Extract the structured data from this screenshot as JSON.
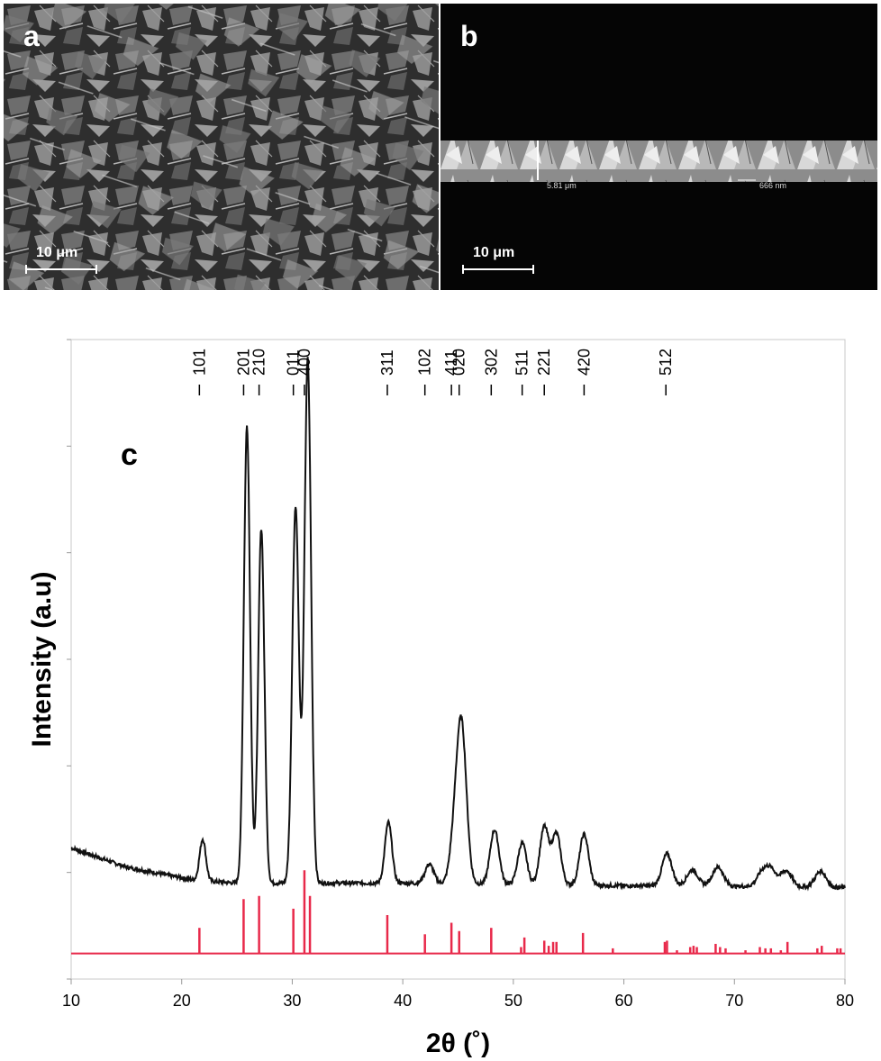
{
  "panels": {
    "a": {
      "letter": "a",
      "scale": "10 μm"
    },
    "b": {
      "letter": "b",
      "scale": "10 μm",
      "measure_1": "5.81 μm",
      "measure_2": "666 nm"
    }
  },
  "chart_data": {
    "type": "line",
    "panel_letter": "c",
    "xlabel": "2θ (˚)",
    "ylabel": "Intensity (a.u)",
    "xlim": [
      10,
      80
    ],
    "x_ticks": [
      10,
      20,
      30,
      40,
      50,
      60,
      70,
      80
    ],
    "grid": false,
    "series": [
      {
        "color": "#111111",
        "background": [
          [
            10,
            0.205
          ],
          [
            15,
            0.175
          ],
          [
            18,
            0.165
          ],
          [
            21,
            0.155
          ],
          [
            25,
            0.15
          ],
          [
            30,
            0.15
          ],
          [
            40,
            0.15
          ],
          [
            50,
            0.148
          ],
          [
            60,
            0.146
          ],
          [
            70,
            0.145
          ],
          [
            80,
            0.143
          ]
        ],
        "peaks": [
          {
            "x": 21.9,
            "h": 0.065,
            "w": 0.28
          },
          {
            "x": 25.9,
            "h": 0.715,
            "w": 0.28
          },
          {
            "x": 27.2,
            "h": 0.555,
            "w": 0.28
          },
          {
            "x": 30.3,
            "h": 0.59,
            "w": 0.3
          },
          {
            "x": 31.4,
            "h": 0.82,
            "w": 0.3
          },
          {
            "x": 38.7,
            "h": 0.095,
            "w": 0.32
          },
          {
            "x": 42.4,
            "h": 0.03,
            "w": 0.4
          },
          {
            "x": 44.6,
            "h": 0.05,
            "w": 0.4
          },
          {
            "x": 45.3,
            "h": 0.25,
            "w": 0.45
          },
          {
            "x": 48.3,
            "h": 0.085,
            "w": 0.4
          },
          {
            "x": 50.8,
            "h": 0.065,
            "w": 0.4
          },
          {
            "x": 52.8,
            "h": 0.09,
            "w": 0.4
          },
          {
            "x": 53.9,
            "h": 0.08,
            "w": 0.4
          },
          {
            "x": 56.4,
            "h": 0.08,
            "w": 0.4
          },
          {
            "x": 63.9,
            "h": 0.05,
            "w": 0.45
          },
          {
            "x": 66.2,
            "h": 0.025,
            "w": 0.5
          },
          {
            "x": 68.5,
            "h": 0.03,
            "w": 0.5
          },
          {
            "x": 72.5,
            "h": 0.02,
            "w": 0.5
          },
          {
            "x": 73.3,
            "h": 0.025,
            "w": 0.5
          },
          {
            "x": 74.7,
            "h": 0.025,
            "w": 0.5
          },
          {
            "x": 77.8,
            "h": 0.025,
            "w": 0.5
          }
        ]
      },
      {
        "color": "#e8294a",
        "type": "stick",
        "baseline": 0.04,
        "sticks": [
          [
            21.6,
            0.04
          ],
          [
            25.6,
            0.085
          ],
          [
            27.0,
            0.09
          ],
          [
            30.1,
            0.07
          ],
          [
            31.1,
            0.13
          ],
          [
            31.6,
            0.09
          ],
          [
            38.6,
            0.06
          ],
          [
            42.0,
            0.03
          ],
          [
            44.4,
            0.048
          ],
          [
            45.1,
            0.035
          ],
          [
            48.0,
            0.04
          ],
          [
            50.7,
            0.01
          ],
          [
            51.0,
            0.025
          ],
          [
            52.8,
            0.02
          ],
          [
            53.2,
            0.012
          ],
          [
            53.6,
            0.018
          ],
          [
            53.9,
            0.018
          ],
          [
            56.3,
            0.032
          ],
          [
            59.0,
            0.008
          ],
          [
            63.7,
            0.018
          ],
          [
            63.9,
            0.02
          ],
          [
            64.8,
            0.005
          ],
          [
            66.0,
            0.01
          ],
          [
            66.3,
            0.012
          ],
          [
            66.6,
            0.01
          ],
          [
            68.3,
            0.015
          ],
          [
            68.7,
            0.01
          ],
          [
            69.2,
            0.008
          ],
          [
            71.0,
            0.005
          ],
          [
            72.3,
            0.01
          ],
          [
            72.8,
            0.008
          ],
          [
            73.3,
            0.008
          ],
          [
            74.2,
            0.005
          ],
          [
            74.8,
            0.018
          ],
          [
            77.5,
            0.008
          ],
          [
            77.9,
            0.012
          ],
          [
            79.3,
            0.008
          ],
          [
            79.6,
            0.008
          ]
        ]
      }
    ],
    "annotations": [
      {
        "label": "101",
        "x": 21.6
      },
      {
        "label": "201",
        "x": 25.6
      },
      {
        "label": "210",
        "x": 27.0
      },
      {
        "label": "011",
        "x": 30.1
      },
      {
        "label": "400",
        "x": 31.1
      },
      {
        "label": "311",
        "x": 38.6
      },
      {
        "label": "102",
        "x": 42.0
      },
      {
        "label": "411",
        "x": 44.4
      },
      {
        "label": "020",
        "x": 45.1
      },
      {
        "label": "302",
        "x": 48.0
      },
      {
        "label": "511",
        "x": 50.8
      },
      {
        "label": "221",
        "x": 52.8
      },
      {
        "label": "420",
        "x": 56.4
      },
      {
        "label": "512",
        "x": 63.8
      }
    ]
  }
}
